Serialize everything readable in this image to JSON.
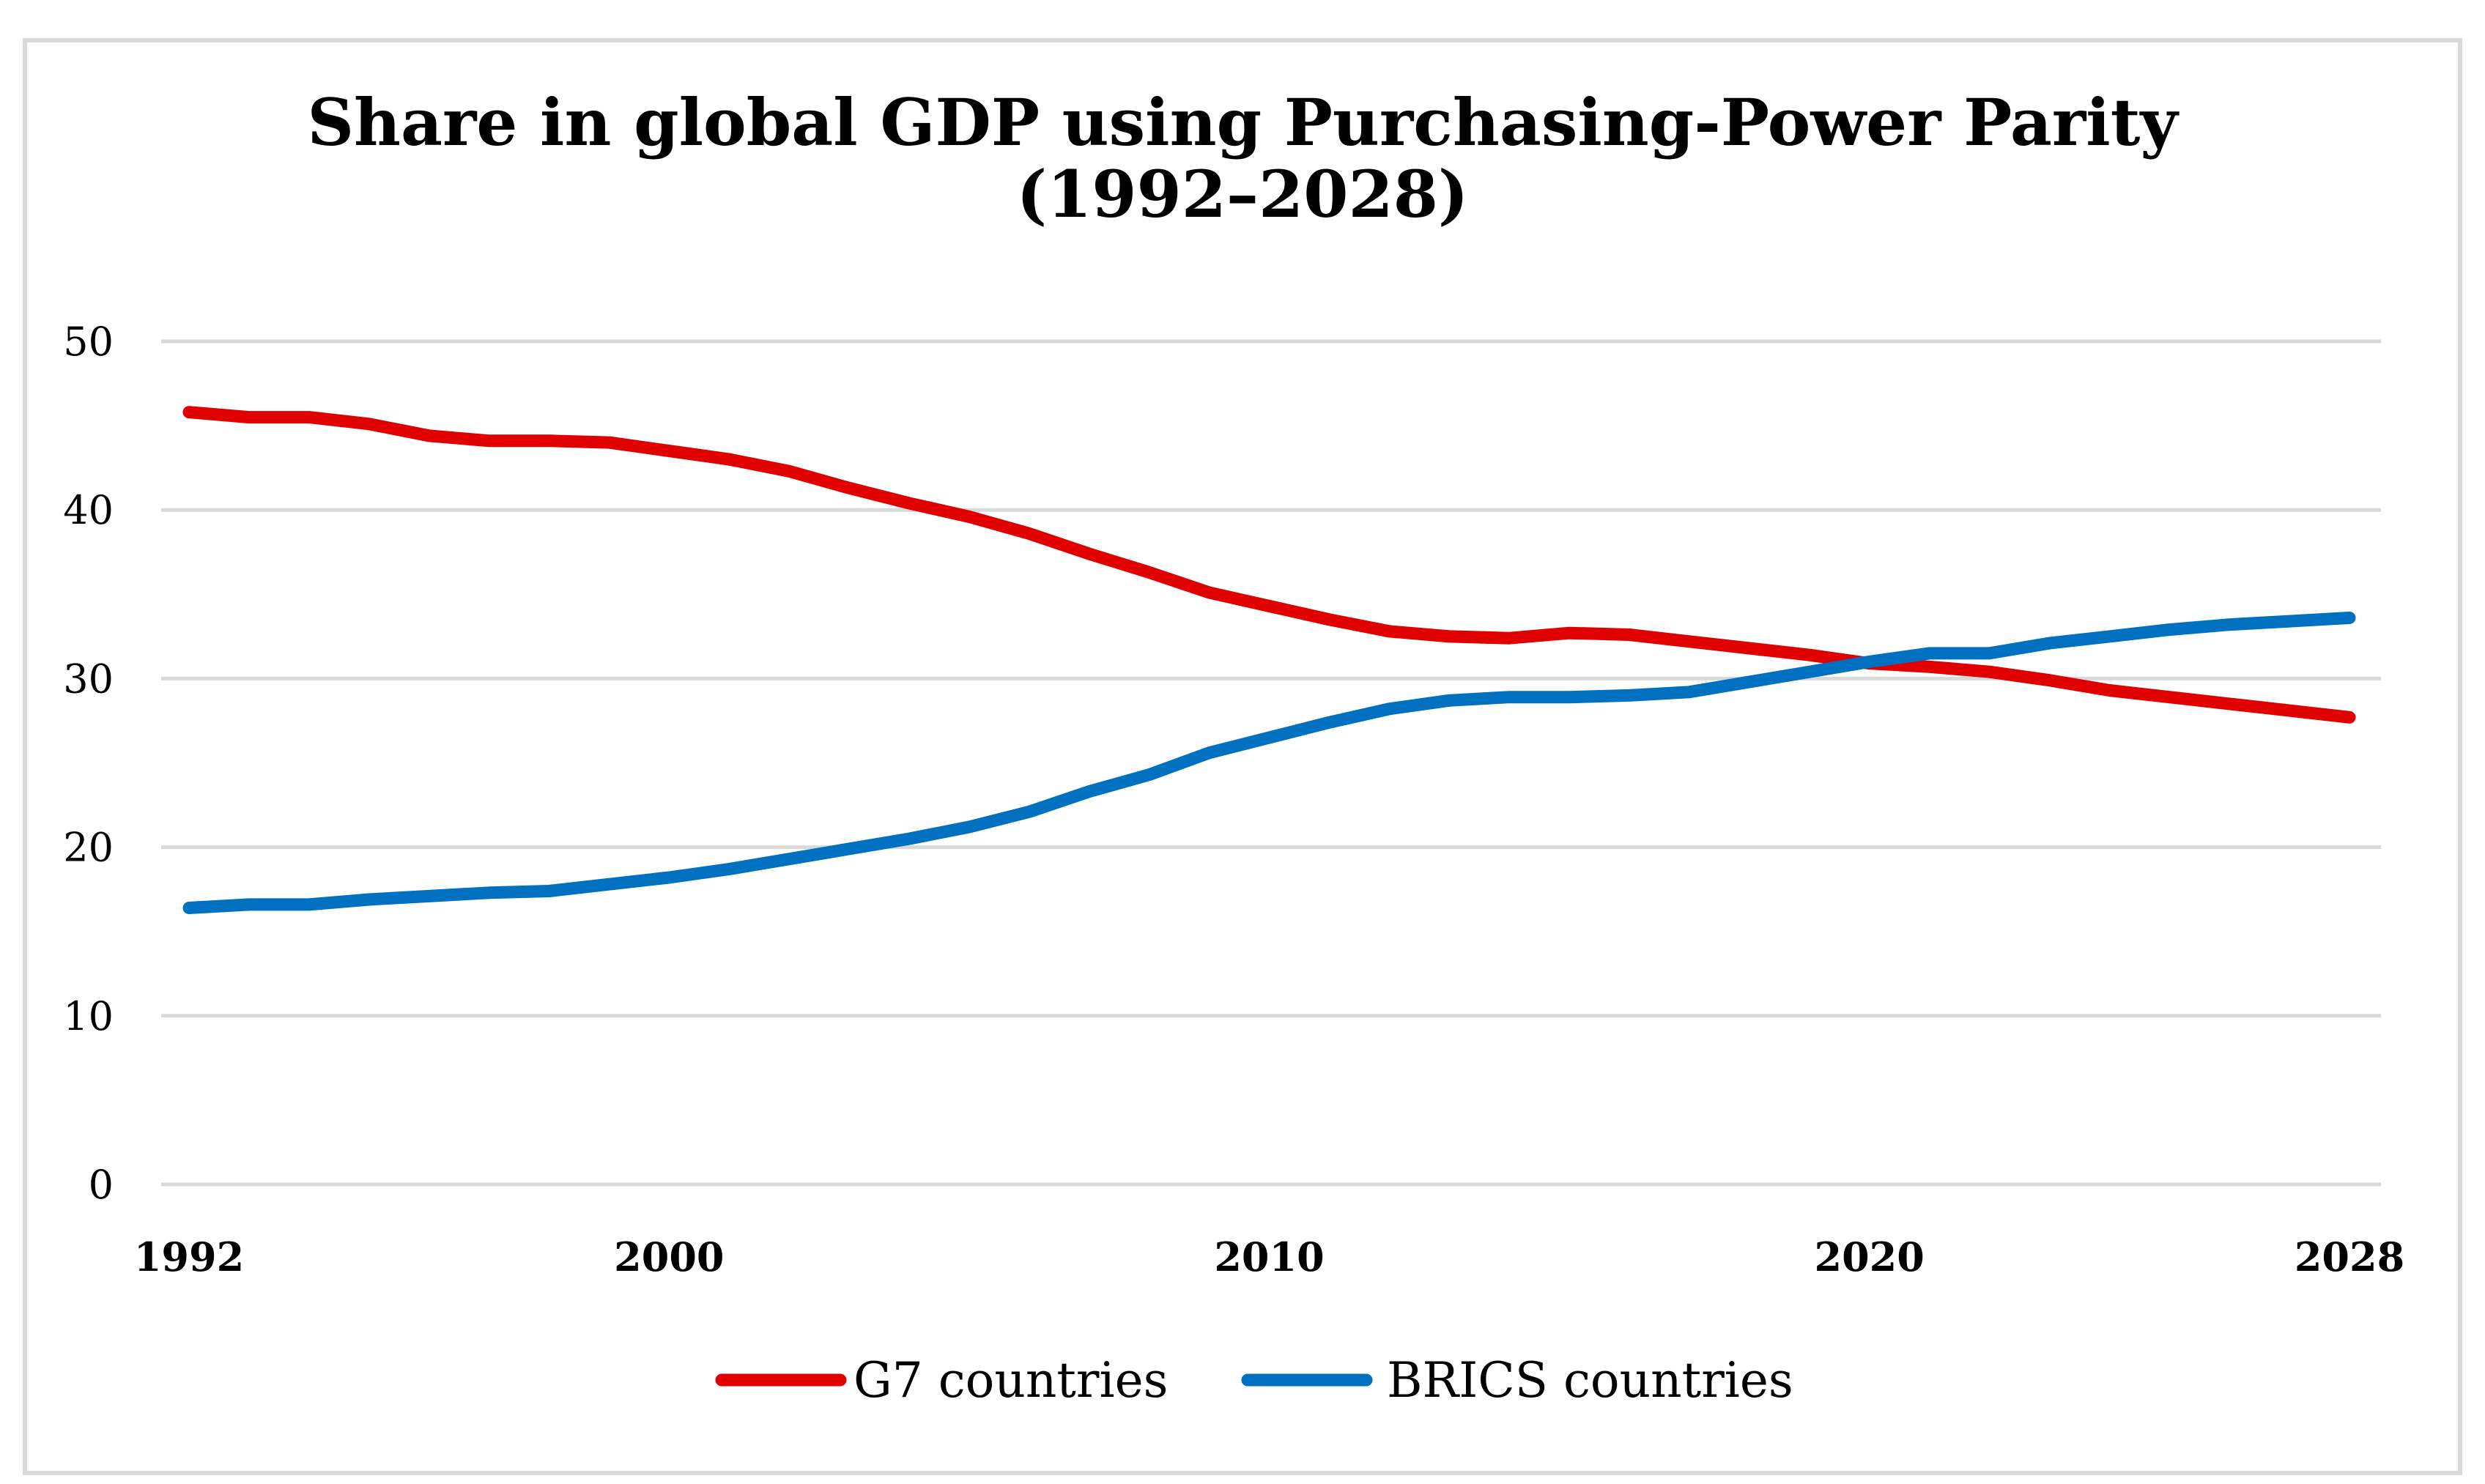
{
  "chart_data": {
    "type": "line",
    "title": "Share in global GDP using Purchasing-Power Parity",
    "subtitle": "(1992–2028)",
    "xlabel": "",
    "ylabel": "",
    "x": [
      1992,
      1993,
      1994,
      1995,
      1996,
      1997,
      1998,
      1999,
      2000,
      2001,
      2002,
      2003,
      2004,
      2005,
      2006,
      2007,
      2008,
      2009,
      2010,
      2011,
      2012,
      2013,
      2014,
      2015,
      2016,
      2017,
      2018,
      2019,
      2020,
      2021,
      2022,
      2023,
      2024,
      2025,
      2026,
      2027,
      2028
    ],
    "x_ticks": [
      "1992",
      "2000",
      "2010",
      "2020",
      "2028"
    ],
    "x_tick_values": [
      1992,
      2000,
      2010,
      2020,
      2028
    ],
    "y_ticks": [
      "0",
      "10",
      "20",
      "30",
      "40",
      "50"
    ],
    "y_tick_values": [
      0,
      10,
      20,
      30,
      40,
      50
    ],
    "xlim": [
      1992,
      2028
    ],
    "ylim": [
      0,
      50
    ],
    "grid": true,
    "legend_position": "bottom-center",
    "series": [
      {
        "name": "G7 countries",
        "color": "#e00000",
        "values": [
          45.8,
          45.5,
          45.5,
          45.1,
          44.4,
          44.1,
          44.1,
          44.0,
          43.5,
          43.0,
          42.3,
          41.3,
          40.4,
          39.6,
          38.6,
          37.4,
          36.3,
          35.1,
          34.3,
          33.5,
          32.8,
          32.5,
          32.4,
          32.7,
          32.6,
          32.2,
          31.8,
          31.4,
          30.9,
          30.7,
          30.4,
          29.9,
          29.3,
          28.9,
          28.5,
          28.1,
          27.7
        ]
      },
      {
        "name": "BRICS countries",
        "color": "#0070c0",
        "values": [
          16.4,
          16.6,
          16.6,
          16.9,
          17.1,
          17.3,
          17.4,
          17.8,
          18.2,
          18.7,
          19.3,
          19.9,
          20.5,
          21.2,
          22.1,
          23.3,
          24.3,
          25.6,
          26.5,
          27.4,
          28.2,
          28.7,
          28.9,
          28.9,
          29.0,
          29.2,
          29.8,
          30.4,
          31.0,
          31.5,
          31.5,
          32.1,
          32.5,
          32.9,
          33.2,
          33.4,
          33.6
        ]
      }
    ]
  }
}
